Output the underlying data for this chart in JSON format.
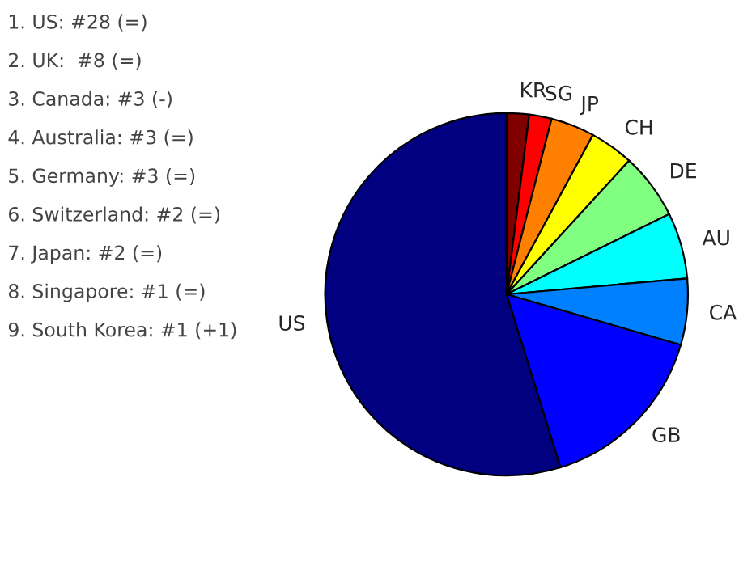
{
  "chart_data": {
    "type": "pie",
    "categories": [
      "KR",
      "SG",
      "JP",
      "CH",
      "DE",
      "AU",
      "CA",
      "GB",
      "US"
    ],
    "values": [
      2.0,
      2.0,
      3.9,
      3.9,
      5.9,
      5.9,
      5.9,
      15.7,
      54.8
    ],
    "colors": [
      "#800000",
      "#ff0000",
      "#ff8000",
      "#ffff00",
      "#80ff80",
      "#00ffff",
      "#0080ff",
      "#0000ff",
      "#000080"
    ],
    "annotations": [
      "1. US: #28 (=)",
      "2. UK:  #8 (=)",
      "3. Canada: #3 (-)",
      "4. Australia: #3 (=)",
      "5. Germany: #3 (=)",
      "6. Switzerland: #2 (=)",
      "7. Japan: #2 (=)",
      "8. Singapore: #1 (=)",
      "9. South Korea: #1 (+1)"
    ]
  }
}
